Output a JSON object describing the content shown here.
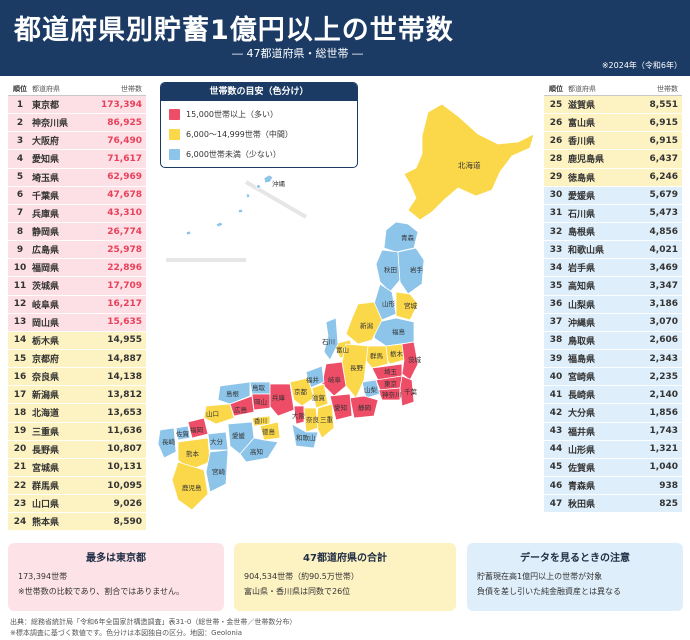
{
  "header": {
    "title": "都道府県別貯蓄1億円以上の世帯数",
    "subtitle": "― 47都道府県・総世帯 ―",
    "date_note": "※2024年（令和6年）"
  },
  "table_headers": {
    "rank": "順位",
    "name": "都道府県",
    "value": "世帯数"
  },
  "colors": {
    "high": "#ed4d66",
    "mid": "#fbd74a",
    "low": "#8cc4ea",
    "navy": "#1b3a64"
  },
  "rankings_left": [
    {
      "rank": "1",
      "name": "東京都",
      "value": "173,394",
      "cat": "high"
    },
    {
      "rank": "2",
      "name": "神奈川県",
      "value": "86,925",
      "cat": "high"
    },
    {
      "rank": "3",
      "name": "大阪府",
      "value": "76,490",
      "cat": "high"
    },
    {
      "rank": "4",
      "name": "愛知県",
      "value": "71,617",
      "cat": "high"
    },
    {
      "rank": "5",
      "name": "埼玉県",
      "value": "62,969",
      "cat": "high"
    },
    {
      "rank": "6",
      "name": "千葉県",
      "value": "47,678",
      "cat": "high"
    },
    {
      "rank": "7",
      "name": "兵庫県",
      "value": "43,310",
      "cat": "high"
    },
    {
      "rank": "8",
      "name": "静岡県",
      "value": "26,774",
      "cat": "high"
    },
    {
      "rank": "9",
      "name": "広島県",
      "value": "25,978",
      "cat": "high"
    },
    {
      "rank": "10",
      "name": "福岡県",
      "value": "22,896",
      "cat": "high"
    },
    {
      "rank": "11",
      "name": "茨城県",
      "value": "17,709",
      "cat": "high"
    },
    {
      "rank": "12",
      "name": "岐阜県",
      "value": "16,217",
      "cat": "high"
    },
    {
      "rank": "13",
      "name": "岡山県",
      "value": "15,635",
      "cat": "high"
    },
    {
      "rank": "14",
      "name": "栃木県",
      "value": "14,955",
      "cat": "mid"
    },
    {
      "rank": "15",
      "name": "京都府",
      "value": "14,887",
      "cat": "mid"
    },
    {
      "rank": "16",
      "name": "奈良県",
      "value": "14,138",
      "cat": "mid"
    },
    {
      "rank": "17",
      "name": "新潟県",
      "value": "13,812",
      "cat": "mid"
    },
    {
      "rank": "18",
      "name": "北海道",
      "value": "13,653",
      "cat": "mid"
    },
    {
      "rank": "19",
      "name": "三重県",
      "value": "11,636",
      "cat": "mid"
    },
    {
      "rank": "20",
      "name": "長野県",
      "value": "10,807",
      "cat": "mid"
    },
    {
      "rank": "21",
      "name": "宮城県",
      "value": "10,131",
      "cat": "mid"
    },
    {
      "rank": "22",
      "name": "群馬県",
      "value": "10,095",
      "cat": "mid"
    },
    {
      "rank": "23",
      "name": "山口県",
      "value": "9,026",
      "cat": "mid"
    },
    {
      "rank": "24",
      "name": "熊本県",
      "value": "8,590",
      "cat": "mid"
    }
  ],
  "rankings_right": [
    {
      "rank": "25",
      "name": "滋賀県",
      "value": "8,551",
      "cat": "mid"
    },
    {
      "rank": "26",
      "name": "富山県",
      "value": "6,915",
      "cat": "mid"
    },
    {
      "rank": "26",
      "name": "香川県",
      "value": "6,915",
      "cat": "mid"
    },
    {
      "rank": "28",
      "name": "鹿児島県",
      "value": "6,437",
      "cat": "mid"
    },
    {
      "rank": "29",
      "name": "徳島県",
      "value": "6,246",
      "cat": "mid"
    },
    {
      "rank": "30",
      "name": "愛媛県",
      "value": "5,679",
      "cat": "low"
    },
    {
      "rank": "31",
      "name": "石川県",
      "value": "5,473",
      "cat": "low"
    },
    {
      "rank": "32",
      "name": "島根県",
      "value": "4,856",
      "cat": "low"
    },
    {
      "rank": "33",
      "name": "和歌山県",
      "value": "4,021",
      "cat": "low"
    },
    {
      "rank": "34",
      "name": "岩手県",
      "value": "3,469",
      "cat": "low"
    },
    {
      "rank": "35",
      "name": "高知県",
      "value": "3,347",
      "cat": "low"
    },
    {
      "rank": "36",
      "name": "山梨県",
      "value": "3,186",
      "cat": "low"
    },
    {
      "rank": "37",
      "name": "沖縄県",
      "value": "3,070",
      "cat": "low"
    },
    {
      "rank": "38",
      "name": "鳥取県",
      "value": "2,606",
      "cat": "low"
    },
    {
      "rank": "39",
      "name": "福島県",
      "value": "2,343",
      "cat": "low"
    },
    {
      "rank": "40",
      "name": "宮崎県",
      "value": "2,235",
      "cat": "low"
    },
    {
      "rank": "41",
      "name": "長崎県",
      "value": "2,140",
      "cat": "low"
    },
    {
      "rank": "42",
      "name": "大分県",
      "value": "1,856",
      "cat": "low"
    },
    {
      "rank": "43",
      "name": "福井県",
      "value": "1,743",
      "cat": "low"
    },
    {
      "rank": "44",
      "name": "山形県",
      "value": "1,321",
      "cat": "low"
    },
    {
      "rank": "45",
      "name": "佐賀県",
      "value": "1,040",
      "cat": "low"
    },
    {
      "rank": "46",
      "name": "青森県",
      "value": "938",
      "cat": "low"
    },
    {
      "rank": "47",
      "name": "秋田県",
      "value": "825",
      "cat": "low"
    }
  ],
  "legend": {
    "title": "世帯数の目安（色分け）",
    "items": [
      {
        "label": "15,000世帯以上（多い）",
        "cat": "high"
      },
      {
        "label": "6,000～14,999世帯（中間）",
        "cat": "mid"
      },
      {
        "label": "6,000世帯未満（少ない）",
        "cat": "low"
      }
    ]
  },
  "map_labels": {
    "hokkaido": "北海道",
    "okinawa": "沖縄",
    "aomori": "青森",
    "akita": "秋田",
    "iwate": "岩手",
    "yamagata": "山形",
    "miyagi": "宮城",
    "niigata": "新潟",
    "fukushima": "福島",
    "ishikawa": "石川",
    "toyama": "富山",
    "gunma": "群馬",
    "tochigi": "栃木",
    "ibaraki": "茨城",
    "nagano": "長野",
    "saitama": "埼玉",
    "tokyo": "東京",
    "chiba": "千葉",
    "kanagawa": "神奈川",
    "yamanashi": "山梨",
    "gifu": "岐阜",
    "fukui": "福井",
    "shizuoka": "静岡",
    "aichi": "愛知",
    "shiga": "滋賀",
    "kyoto": "京都",
    "mie": "三重",
    "hyogo": "兵庫",
    "osaka": "大阪",
    "nara": "奈良",
    "wakayama": "和歌山",
    "tottori": "鳥取",
    "shimane": "島根",
    "okayama": "岡山",
    "hiroshima": "広島",
    "yamaguchi": "山口",
    "kagawa": "香川",
    "tokushima": "徳島",
    "ehime": "愛媛",
    "kochi": "高知",
    "fukuoka": "福岡",
    "saga": "佐賀",
    "nagasaki": "長崎",
    "kumamoto": "熊本",
    "oita": "大分",
    "miyazaki": "宮崎",
    "kagoshima": "鹿児島"
  },
  "summary": {
    "box1": {
      "title": "最多は東京都",
      "line1": "173,394世帯",
      "line2": "※世帯数の比較であり、割合ではありません。"
    },
    "box2": {
      "title": "47都道府県の合計",
      "line1": "904,534世帯（約90.5万世帯）",
      "line2": "富山県・香川県は同数で26位"
    },
    "box3": {
      "title": "データを見るときの注意",
      "line1": "貯蓄現在高1億円以上の世帯が対象",
      "line2": "負債を差し引いた純金融資産とは異なる"
    }
  },
  "footer": {
    "source": "出典：総務省統計局「令和6年全国家計構造調査」表31-0（総世帯・金世帯／世帯数分布）",
    "note": "※標本調査に基づく数値です。色分けは本図独自の区分。地図：Geolonia"
  }
}
